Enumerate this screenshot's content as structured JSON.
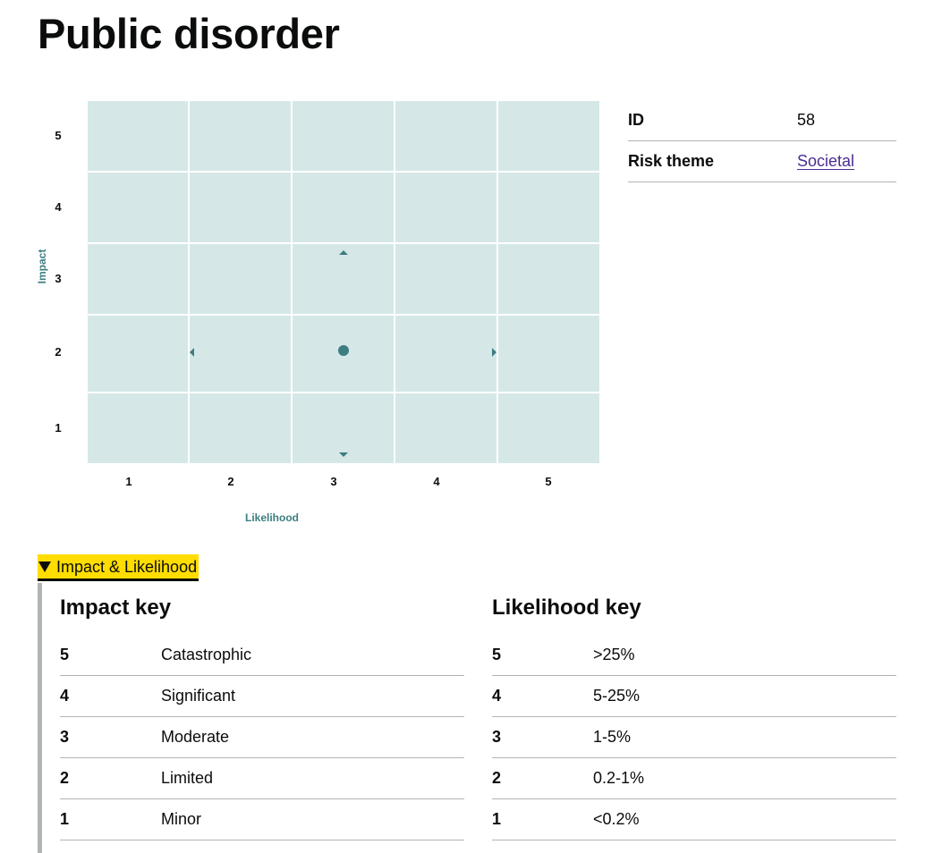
{
  "page": {
    "title": "Public disorder"
  },
  "matrix": {
    "x_axis_label": "Likelihood",
    "y_axis_label": "Impact",
    "x_ticks": [
      "1",
      "2",
      "3",
      "4",
      "5"
    ],
    "y_ticks": [
      "5",
      "4",
      "3",
      "2",
      "1"
    ],
    "rows": 5,
    "cols": 5,
    "position": {
      "likelihood": 3,
      "impact": 2
    },
    "range_markers": [
      "up-arrow-icon",
      "down-arrow-icon",
      "left-arrow-icon",
      "right-arrow-icon"
    ],
    "colors": {
      "cell": "#d5e8e7",
      "grid": "#ffffff",
      "marker": "#3c7d80"
    }
  },
  "summary": [
    {
      "key": "ID",
      "value": "58",
      "link": false
    },
    {
      "key": "Risk theme",
      "value": "Societal",
      "link": true
    }
  ],
  "details": {
    "summary_label": "Impact & Likelihood",
    "impact_key": {
      "heading": "Impact key",
      "rows": [
        {
          "level": "5",
          "desc": "Catastrophic"
        },
        {
          "level": "4",
          "desc": "Significant"
        },
        {
          "level": "3",
          "desc": "Moderate"
        },
        {
          "level": "2",
          "desc": "Limited"
        },
        {
          "level": "1",
          "desc": "Minor"
        }
      ]
    },
    "likelihood_key": {
      "heading": "Likelihood key",
      "rows": [
        {
          "level": "5",
          "desc": ">25%"
        },
        {
          "level": "4",
          "desc": "5-25%"
        },
        {
          "level": "3",
          "desc": "1-5%"
        },
        {
          "level": "2",
          "desc": "0.2-1%"
        },
        {
          "level": "1",
          "desc": "<0.2%"
        }
      ]
    }
  }
}
